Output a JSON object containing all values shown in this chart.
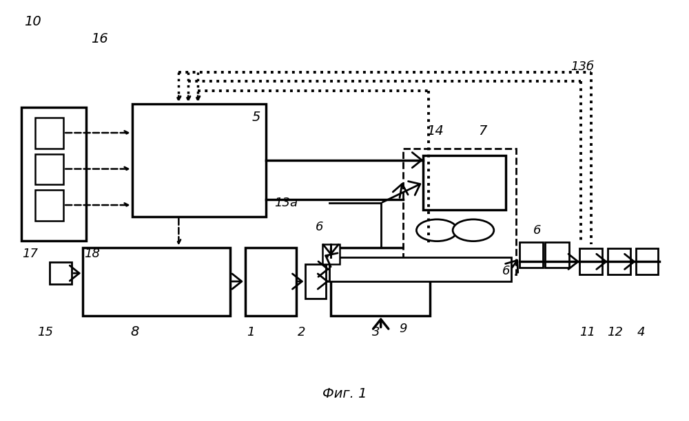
{
  "title": "Фиг. 1",
  "bg_color": "#ffffff",
  "fig_width": 10.0,
  "fig_height": 6.12
}
